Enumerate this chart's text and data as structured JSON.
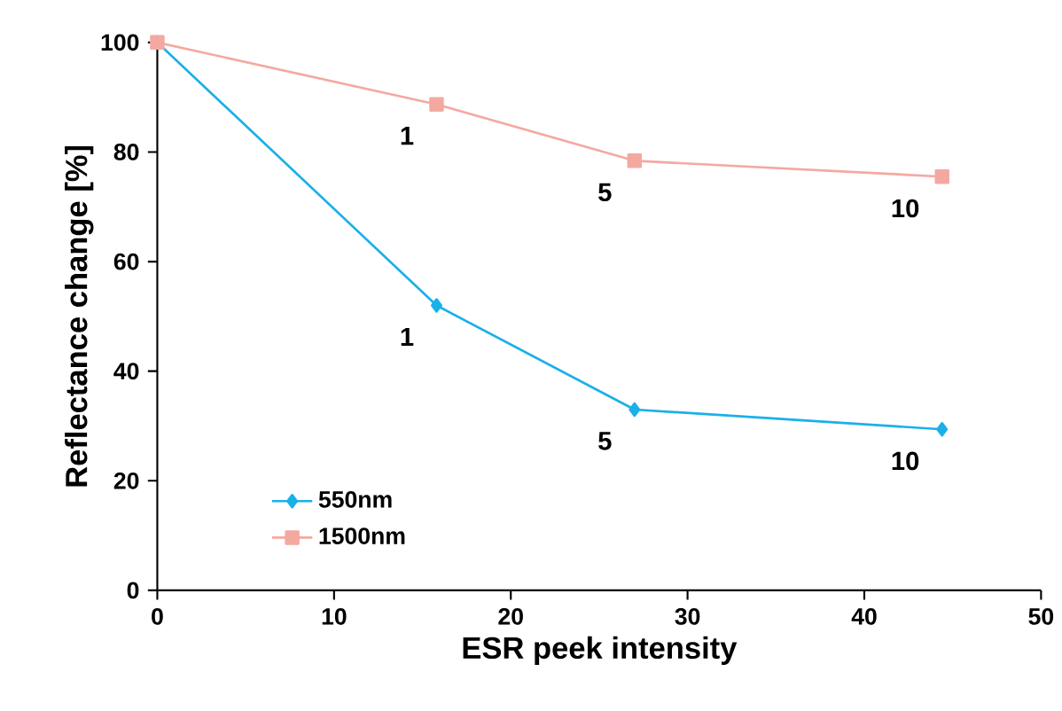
{
  "chart_data": {
    "type": "line",
    "xlabel": "ESR peek intensity",
    "ylabel": "Reflectance change [%]",
    "xlim": [
      0,
      50
    ],
    "ylim": [
      0,
      100
    ],
    "xticks": [
      0,
      10,
      20,
      30,
      40,
      50
    ],
    "yticks": [
      0,
      20,
      40,
      60,
      80,
      100
    ],
    "legend": "bottom left",
    "grid": false,
    "line_style": "solid",
    "series": [
      {
        "name": "550nm",
        "color": "#1ab0e8",
        "marker": "diamond",
        "x": [
          0,
          15.8,
          27,
          44.4
        ],
        "values": [
          100,
          52,
          33,
          29.4
        ]
      },
      {
        "name": "1500nm",
        "color": "#f4a9a0",
        "marker": "square",
        "x": [
          0,
          15.8,
          27,
          44.4
        ],
        "values": [
          100,
          88.7,
          78.4,
          75.5
        ]
      }
    ],
    "annotations": [
      {
        "text": "1",
        "x": 15.8,
        "y": 52
      },
      {
        "text": "5",
        "x": 27,
        "y": 33
      },
      {
        "text": "10",
        "x": 44.4,
        "y": 29.4
      },
      {
        "text": "1",
        "x": 15.8,
        "y": 88.7
      },
      {
        "text": "5",
        "x": 27,
        "y": 78.4
      },
      {
        "text": "10",
        "x": 44.4,
        "y": 75.5
      }
    ]
  }
}
